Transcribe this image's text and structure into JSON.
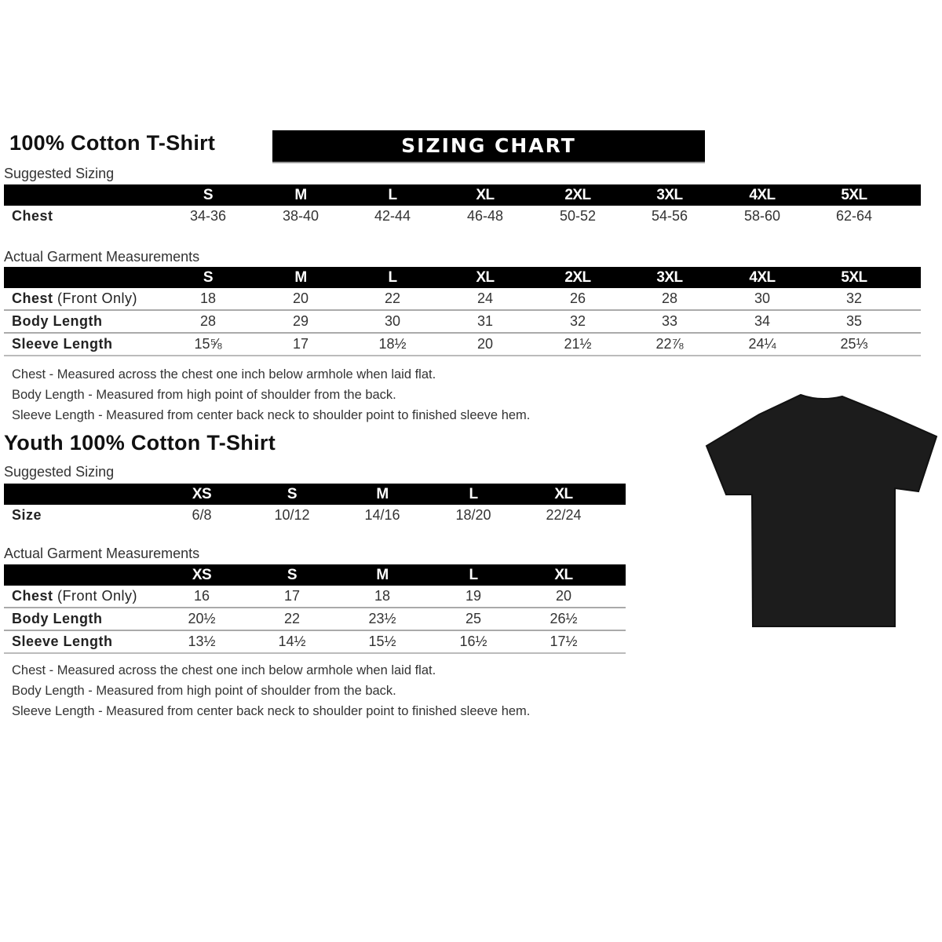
{
  "adult": {
    "title": "100% Cotton T-Shirt",
    "banner": "SIZING CHART",
    "suggested_label": "Suggested Sizing",
    "sizes": [
      "S",
      "M",
      "L",
      "XL",
      "2XL",
      "3XL",
      "4XL",
      "5XL"
    ],
    "suggested_rows": [
      {
        "label": "Chest",
        "values": [
          "34-36",
          "38-40",
          "42-44",
          "46-48",
          "50-52",
          "54-56",
          "58-60",
          "62-64"
        ]
      }
    ],
    "actual_label": "Actual Garment Measurements",
    "actual_rows": [
      {
        "label": "Chest",
        "label_note": " (Front Only)",
        "values": [
          "18",
          "20",
          "22",
          "24",
          "26",
          "28",
          "30",
          "32"
        ]
      },
      {
        "label": "Body Length",
        "values": [
          "28",
          "29",
          "30",
          "31",
          "32",
          "33",
          "34",
          "35"
        ]
      },
      {
        "label": "Sleeve Length",
        "values": [
          "15⅝",
          "17",
          "18½",
          "20",
          "21½",
          "22⅞",
          "24¼",
          "25⅓"
        ]
      }
    ],
    "notes": [
      "Chest - Measured across the chest one inch below armhole when laid flat.",
      "Body Length - Measured from high point of shoulder from the back.",
      "Sleeve Length - Measured from center back neck to shoulder point to finished sleeve hem."
    ]
  },
  "youth": {
    "title": "Youth 100% Cotton T-Shirt",
    "suggested_label": "Suggested Sizing",
    "sizes": [
      "XS",
      "S",
      "M",
      "L",
      "XL"
    ],
    "suggested_rows": [
      {
        "label": "Size",
        "values": [
          "6/8",
          "10/12",
          "14/16",
          "18/20",
          "22/24"
        ]
      }
    ],
    "actual_label": "Actual Garment Measurements",
    "actual_rows": [
      {
        "label": "Chest",
        "label_note": " (Front Only)",
        "values": [
          "16",
          "17",
          "18",
          "19",
          "20"
        ]
      },
      {
        "label": "Body Length",
        "values": [
          "20½",
          "22",
          "23½",
          "25",
          "26½"
        ]
      },
      {
        "label": "Sleeve Length",
        "values": [
          "13½",
          "14½",
          "15½",
          "16½",
          "17½"
        ]
      }
    ],
    "notes": [
      "Chest - Measured across the chest one inch below armhole when laid flat.",
      "Body Length - Measured from high point of shoulder from the back.",
      "Sleeve Length - Measured from center back neck to shoulder point to finished sleeve hem."
    ]
  },
  "image": {
    "icon": "black-t-shirt",
    "color": "#1c1c1c"
  }
}
